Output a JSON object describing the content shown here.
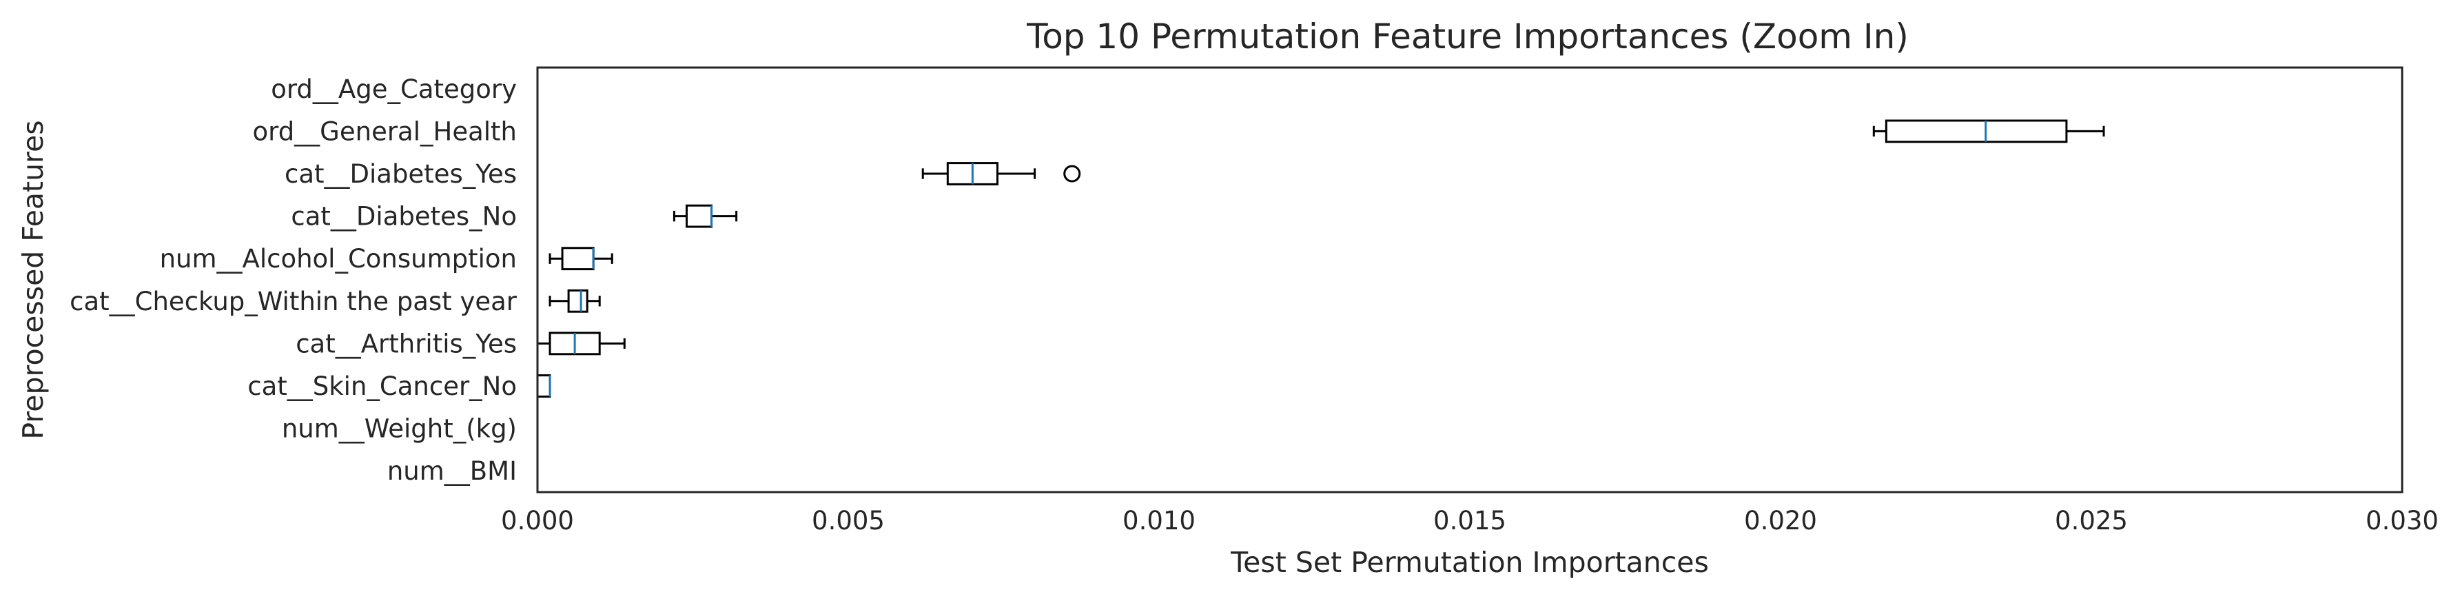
{
  "chart_data": {
    "type": "boxplot",
    "orientation": "horizontal",
    "title": "Top 10 Permutation Feature Importances (Zoom In)",
    "xlabel": "Test Set Permutation Importances",
    "ylabel": "Preprocessed Features",
    "xlim": [
      0.0,
      0.03
    ],
    "xticks": [
      0.0,
      0.005,
      0.01,
      0.015,
      0.02,
      0.025,
      0.03
    ],
    "xtick_labels": [
      "0.000",
      "0.005",
      "0.010",
      "0.015",
      "0.020",
      "0.025",
      "0.030"
    ],
    "grid": false,
    "categories": [
      "ord__Age_Category",
      "ord__General_Health",
      "cat__Diabetes_Yes",
      "cat__Diabetes_No",
      "num__Alcohol_Consumption",
      "cat__Checkup_Within the past year",
      "cat__Arthritis_Yes",
      "cat__Skin_Cancer_No",
      "num__Weight_(kg)",
      "num__BMI"
    ],
    "boxes": [
      {
        "min": null,
        "q1": null,
        "median": null,
        "q3": null,
        "max": null,
        "outliers": []
      },
      {
        "min": 0.0215,
        "q1": 0.0217,
        "median": 0.0233,
        "q3": 0.0246,
        "max": 0.0252,
        "outliers": []
      },
      {
        "min": 0.0062,
        "q1": 0.0066,
        "median": 0.007,
        "q3": 0.0074,
        "max": 0.008,
        "outliers": [
          0.0086
        ]
      },
      {
        "min": 0.0022,
        "q1": 0.0024,
        "median": 0.0028,
        "q3": 0.0028,
        "max": 0.0032,
        "outliers": []
      },
      {
        "min": 0.0002,
        "q1": 0.0004,
        "median": 0.0009,
        "q3": 0.0009,
        "max": 0.0012,
        "outliers": []
      },
      {
        "min": 0.0002,
        "q1": 0.0005,
        "median": 0.0007,
        "q3": 0.0008,
        "max": 0.001,
        "outliers": []
      },
      {
        "min": 0.0,
        "q1": 0.0002,
        "median": 0.0006,
        "q3": 0.001,
        "max": 0.0014,
        "outliers": []
      },
      {
        "min": 0.0,
        "q1": 0.0,
        "median": 0.0002,
        "q3": 0.0002,
        "max": 0.0002,
        "outliers": []
      },
      {
        "min": null,
        "q1": null,
        "median": null,
        "q3": null,
        "max": null,
        "outliers": []
      },
      {
        "min": null,
        "q1": null,
        "median": null,
        "q3": null,
        "max": null,
        "outliers": []
      }
    ],
    "colors": {
      "box": "#000000",
      "median": "#1f77b4",
      "axes": "#262626"
    }
  }
}
